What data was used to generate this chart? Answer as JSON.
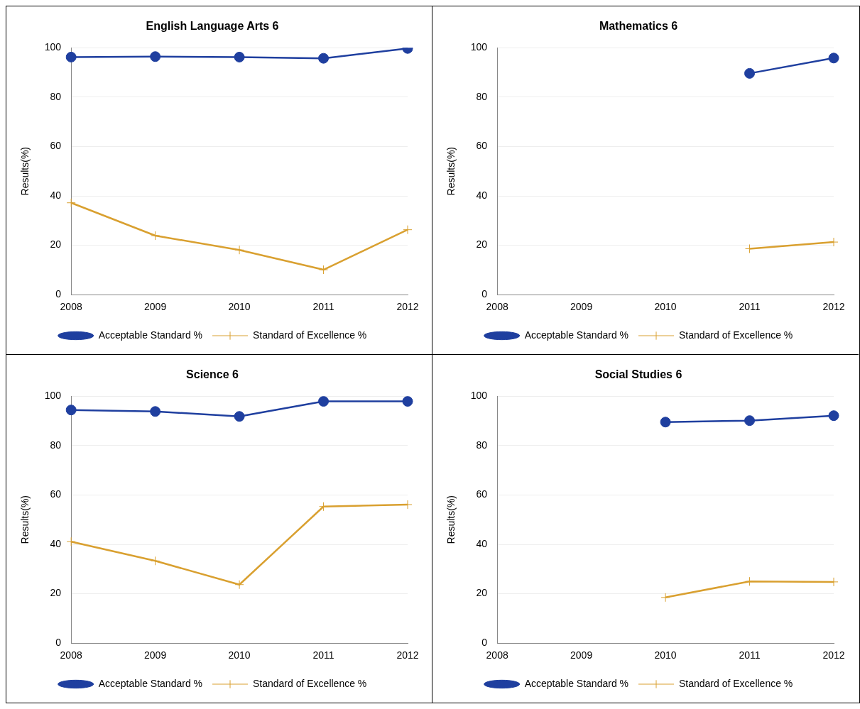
{
  "chart_data": [
    {
      "type": "line",
      "title": "English Language Arts 6",
      "ylabel": "Results(%)",
      "categories": [
        "2008",
        "2009",
        "2010",
        "2011",
        "2012"
      ],
      "ylim": [
        0,
        100
      ],
      "yticks": [
        0,
        20,
        40,
        60,
        80,
        100
      ],
      "grid": "y",
      "legend": "bottom",
      "series": [
        {
          "name": "Acceptable Standard %",
          "color": "#1f3f9f",
          "marker": "circle",
          "values": [
            96.2,
            96.4,
            96.2,
            95.7,
            99.7
          ]
        },
        {
          "name": "Standard of Excellence %",
          "color": "#d9a030",
          "marker": "cross",
          "values": [
            37.2,
            23.9,
            18.1,
            10.1,
            26.3
          ]
        }
      ]
    },
    {
      "type": "line",
      "title": "Mathematics 6",
      "ylabel": "Results(%)",
      "categories": [
        "2008",
        "2009",
        "2010",
        "2011",
        "2012"
      ],
      "ylim": [
        0,
        100
      ],
      "yticks": [
        0,
        20,
        40,
        60,
        80,
        100
      ],
      "grid": "y",
      "legend": "bottom",
      "series": [
        {
          "name": "Acceptable Standard %",
          "color": "#1f3f9f",
          "marker": "circle",
          "values": [
            null,
            null,
            null,
            89.6,
            95.8
          ]
        },
        {
          "name": "Standard of Excellence %",
          "color": "#d9a030",
          "marker": "cross",
          "values": [
            null,
            null,
            null,
            18.6,
            21.3
          ]
        }
      ]
    },
    {
      "type": "line",
      "title": "Science 6",
      "ylabel": "Results(%)",
      "categories": [
        "2008",
        "2009",
        "2010",
        "2011",
        "2012"
      ],
      "ylim": [
        0,
        100
      ],
      "yticks": [
        0,
        20,
        40,
        60,
        80,
        100
      ],
      "grid": "y",
      "legend": "bottom",
      "series": [
        {
          "name": "Acceptable Standard %",
          "color": "#1f3f9f",
          "marker": "circle",
          "values": [
            94.4,
            93.8,
            91.8,
            97.9,
            97.9
          ]
        },
        {
          "name": "Standard of Excellence %",
          "color": "#d9a030",
          "marker": "cross",
          "values": [
            41.1,
            33.3,
            23.7,
            55.3,
            56.1
          ]
        }
      ]
    },
    {
      "type": "line",
      "title": "Social Studies 6",
      "ylabel": "Results(%)",
      "categories": [
        "2008",
        "2009",
        "2010",
        "2011",
        "2012"
      ],
      "ylim": [
        0,
        100
      ],
      "yticks": [
        0,
        20,
        40,
        60,
        80,
        100
      ],
      "grid": "y",
      "legend": "bottom",
      "series": [
        {
          "name": "Acceptable Standard %",
          "color": "#1f3f9f",
          "marker": "circle",
          "values": [
            null,
            null,
            89.5,
            90.1,
            92.1
          ]
        },
        {
          "name": "Standard of Excellence %",
          "color": "#d9a030",
          "marker": "cross",
          "values": [
            null,
            null,
            18.5,
            25.0,
            24.8
          ]
        }
      ]
    }
  ]
}
